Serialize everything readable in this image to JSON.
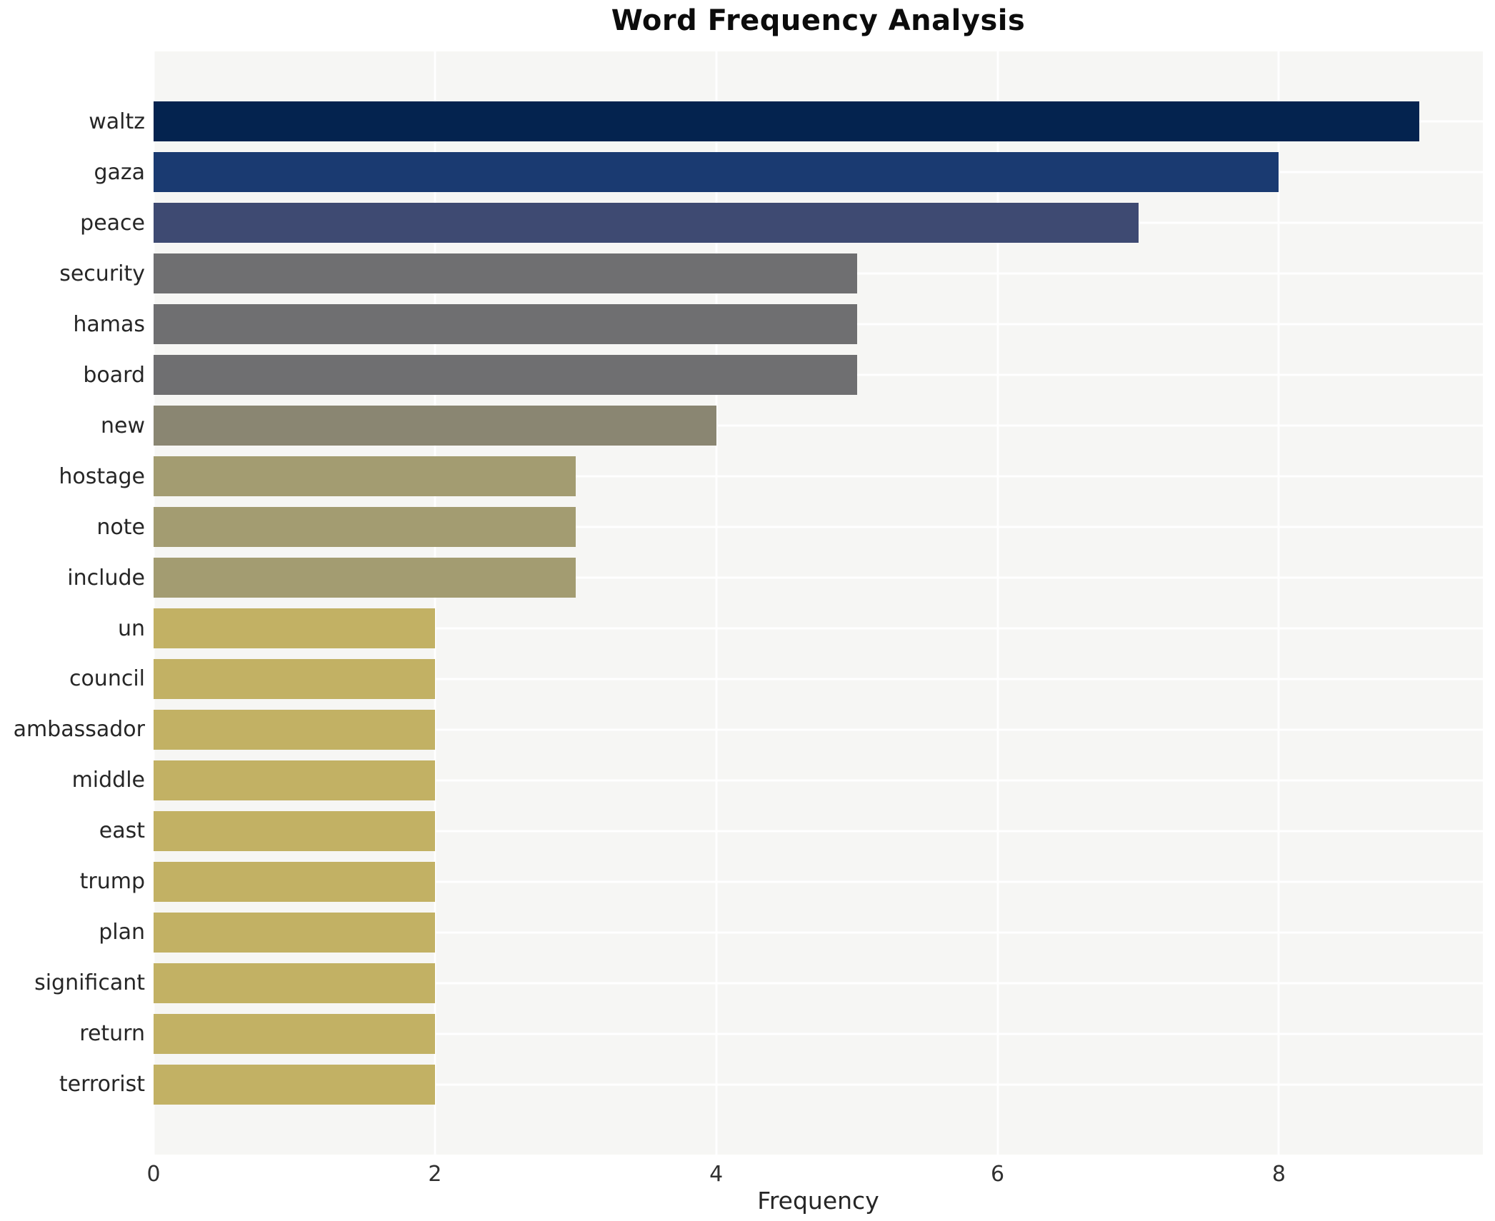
{
  "title": "Word Frequency Analysis",
  "chart_data": {
    "type": "bar",
    "orientation": "horizontal",
    "title": "Word Frequency Analysis",
    "xlabel": "Frequency",
    "ylabel": "",
    "categories": [
      "waltz",
      "gaza",
      "peace",
      "security",
      "hamas",
      "board",
      "new",
      "hostage",
      "note",
      "include",
      "un",
      "council",
      "ambassador",
      "middle",
      "east",
      "trump",
      "plan",
      "significant",
      "return",
      "terrorist"
    ],
    "values": [
      9,
      8,
      7,
      5,
      5,
      5,
      4,
      3,
      3,
      3,
      2,
      2,
      2,
      2,
      2,
      2,
      2,
      2,
      2,
      2
    ],
    "bar_colors": [
      "#04234f",
      "#1a3a71",
      "#3e4a72",
      "#6f6f71",
      "#6f6f71",
      "#6f6f71",
      "#8a8672",
      "#a39c71",
      "#a39c71",
      "#a39c71",
      "#c2b164",
      "#c2b164",
      "#c2b164",
      "#c2b164",
      "#c2b164",
      "#c2b164",
      "#c2b164",
      "#c2b164",
      "#c2b164",
      "#c2b164"
    ],
    "xlim": [
      0,
      9.45
    ],
    "xticks": [
      0,
      2,
      4,
      6,
      8
    ],
    "grid": true,
    "legend": false,
    "colormap": "cividis",
    "plot_bg": "#f6f6f4",
    "grid_color": "#ffffff",
    "figure_bg": "#ffffff"
  }
}
